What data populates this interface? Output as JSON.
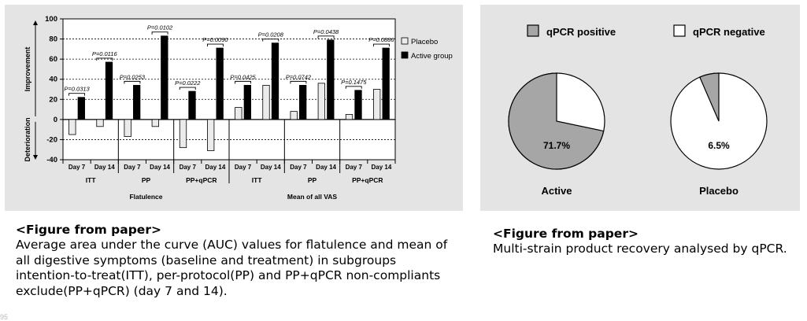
{
  "chart_data": [
    {
      "type": "bar",
      "title": "",
      "ylabel_top": "Improvement",
      "ylabel_bottom": "Deterioration",
      "ylim": [
        -40,
        100
      ],
      "yticks": [
        100,
        80,
        60,
        40,
        20,
        0,
        -20,
        -40
      ],
      "grid": "dashed horizontal at 20-unit steps",
      "legend_position": "top-right",
      "series": [
        {
          "name": "Placebo",
          "color": "#ebebeb",
          "values": [
            -15,
            -7,
            -17,
            -7,
            -28,
            -31,
            12,
            34,
            8,
            36,
            5,
            30
          ]
        },
        {
          "name": "Active group",
          "color": "#000000",
          "values": [
            22,
            57,
            34,
            83,
            28,
            71,
            34,
            76,
            34,
            79,
            29,
            71
          ]
        }
      ],
      "categories": [
        "Day 7",
        "Day 14",
        "Day 7",
        "Day 14",
        "Day 7",
        "Day 14",
        "Day 7",
        "Day 14",
        "Day 7",
        "Day 14",
        "Day 7",
        "Day 14"
      ],
      "subgroups": [
        "ITT",
        "PP",
        "PP+qPCR",
        "ITT",
        "PP",
        "PP+qPCR"
      ],
      "groups": [
        "Flatulence",
        "Mean of all VAS"
      ],
      "pvalues": [
        "P=0.0313",
        "P=0.0116",
        "P=0.0253",
        "P=0.0102",
        "P=0.0222",
        "P=0.0090",
        "P=0.0425",
        "P=0.0208",
        "P=0.0742",
        "P=0.0438",
        "P=0.1475",
        "P=0.0886"
      ]
    },
    {
      "type": "pie",
      "legend": [
        {
          "label": "qPCR positive",
          "color": "#a6a6a6"
        },
        {
          "label": "qPCR negative",
          "color": "#ffffff"
        }
      ],
      "pies": [
        {
          "name": "Active",
          "positive": 71.7,
          "label": "71.7%"
        },
        {
          "name": "Placebo",
          "positive": 6.5,
          "label": "6.5%"
        }
      ]
    }
  ],
  "caption_left": {
    "heading": "<Figure from paper>",
    "body": "Average area under the curve (AUC) values for flatulence and mean of all digestive symptoms (baseline and treatment) in subgroups intention-to-treat(ITT), per-protocol(PP) and PP+qPCR non-compliants exclude(PP+qPCR) (day 7 and 14)."
  },
  "caption_right": {
    "heading": "<Figure from paper>",
    "body": "Multi-strain product recovery analysed by qPCR."
  },
  "page_number": "95"
}
